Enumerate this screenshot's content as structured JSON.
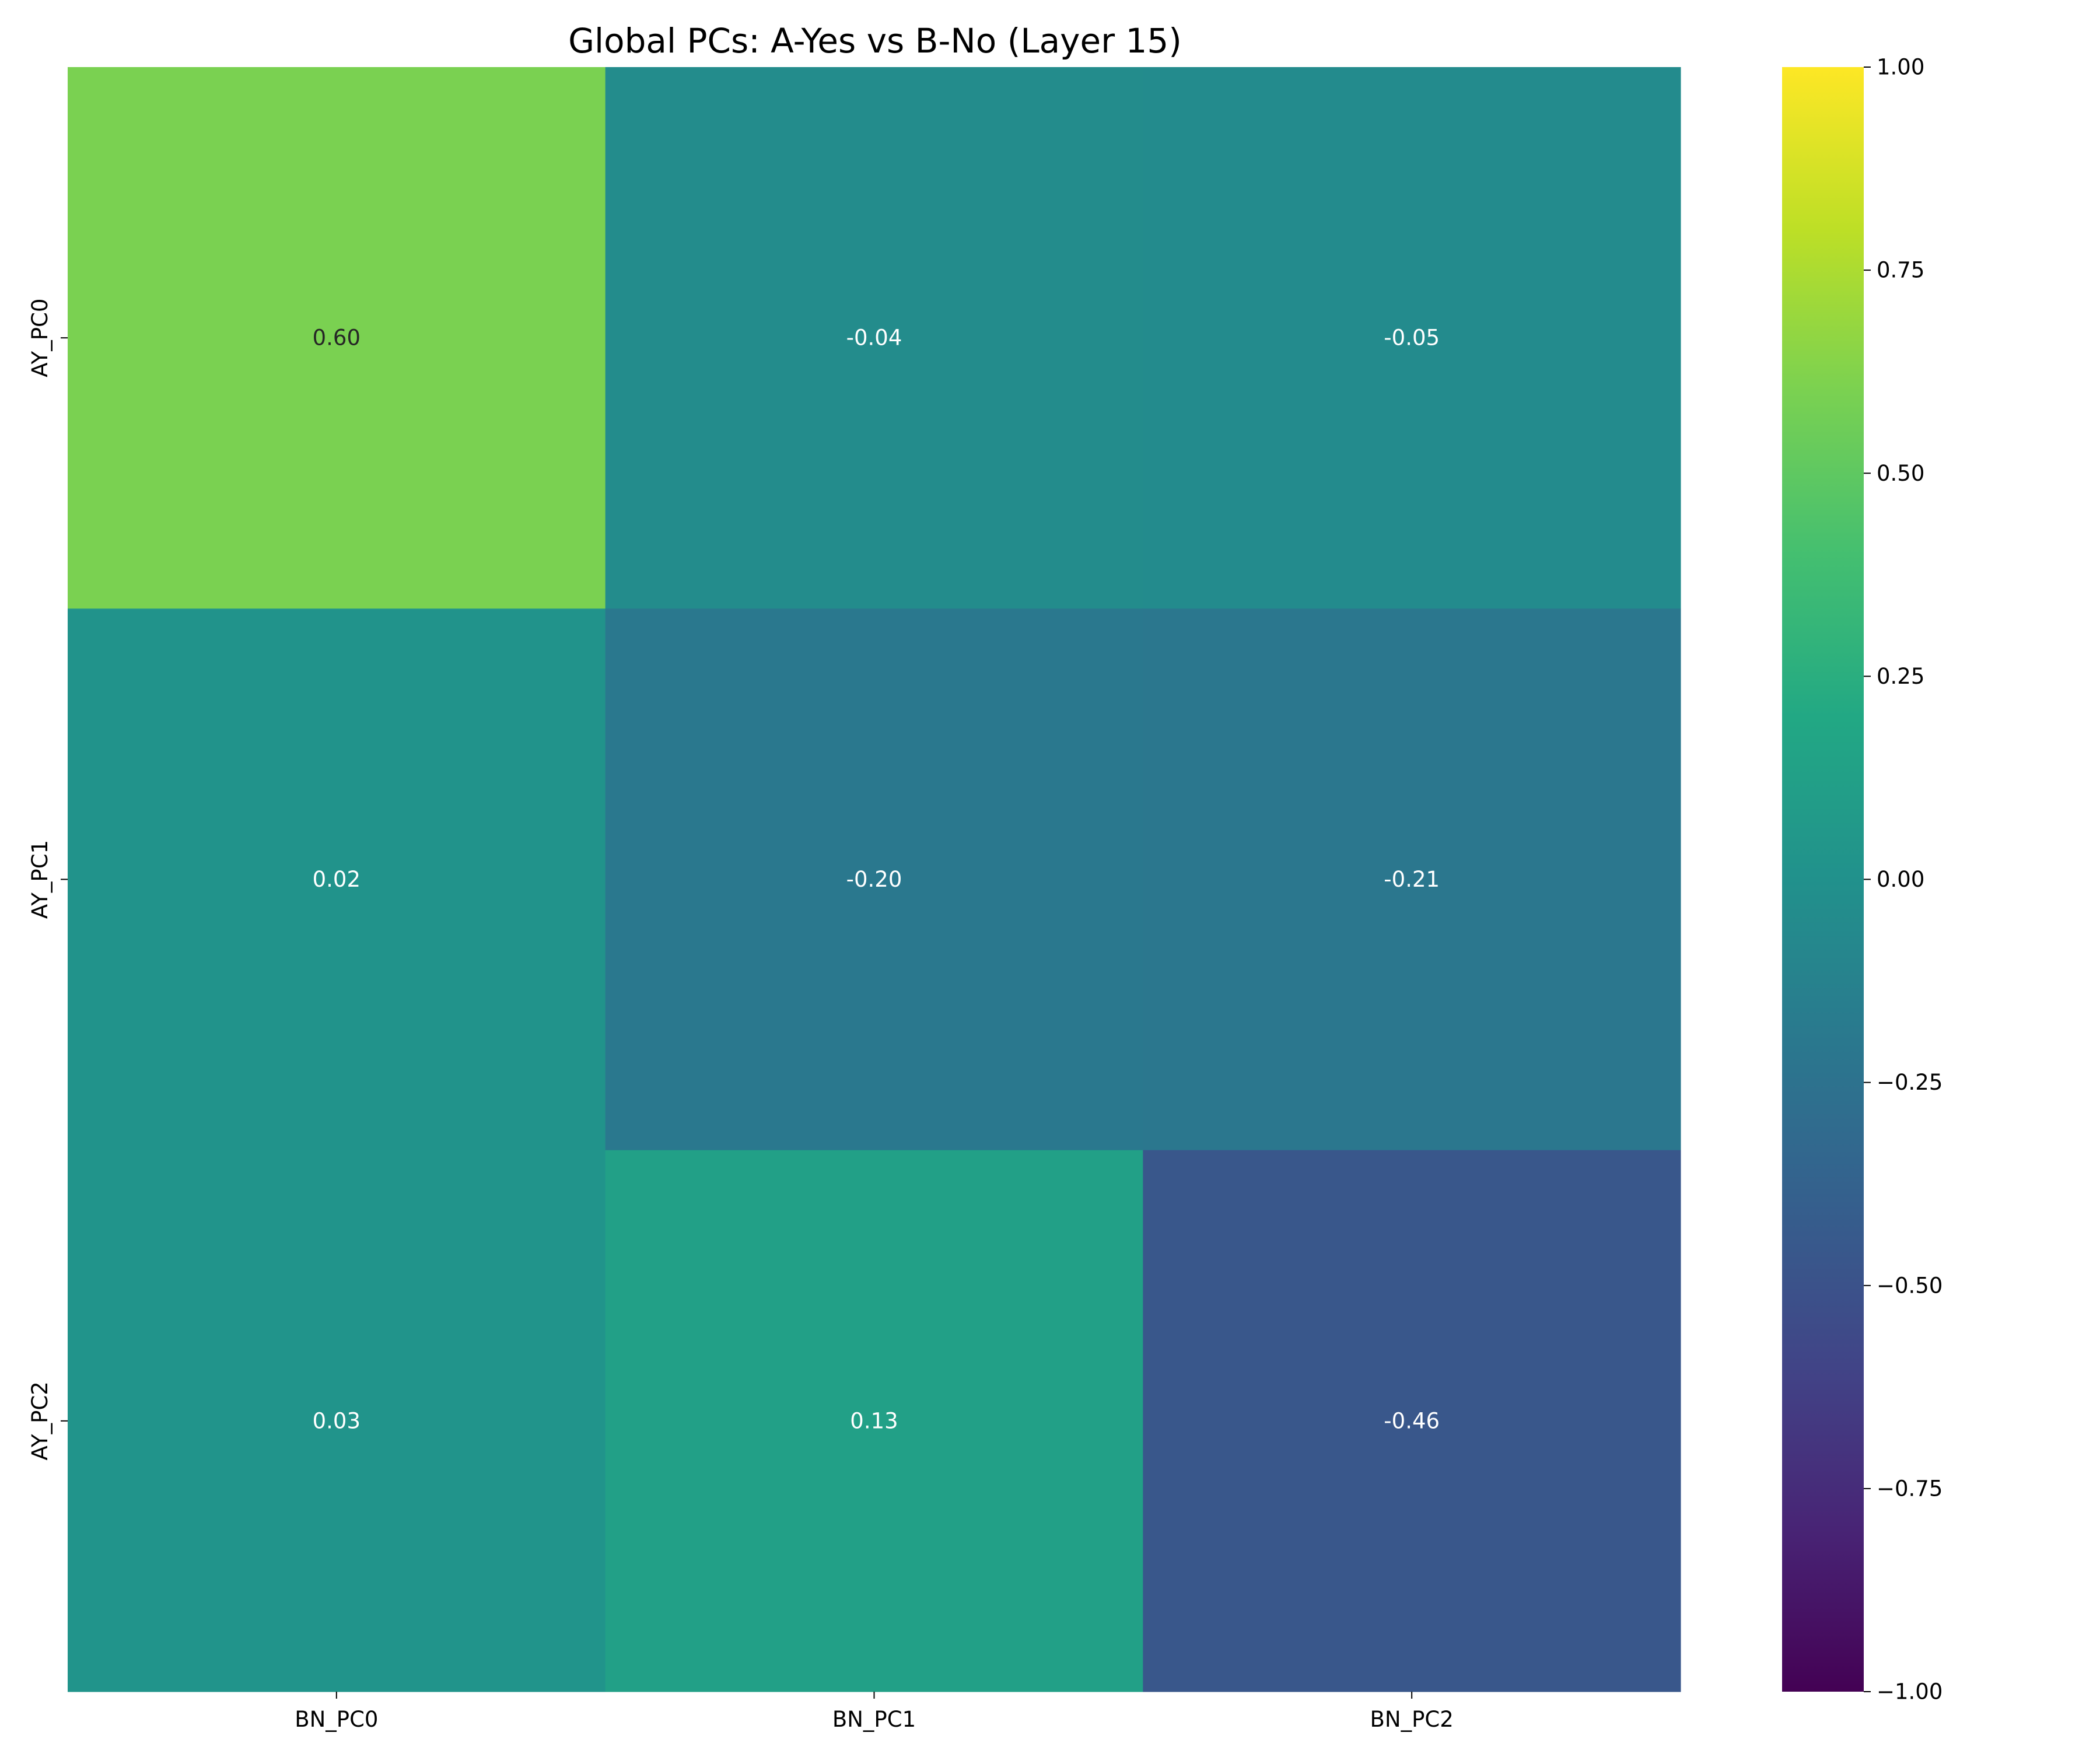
{
  "chart_data": {
    "type": "heatmap",
    "title": "Global PCs: A-Yes vs B-No (Layer 15)",
    "xlabel": "",
    "ylabel": "",
    "x_categories": [
      "BN_PC0",
      "BN_PC1",
      "BN_PC2"
    ],
    "y_categories": [
      "AY_PC0",
      "AY_PC1",
      "AY_PC2"
    ],
    "values": [
      [
        0.6,
        -0.04,
        -0.05
      ],
      [
        0.02,
        -0.2,
        -0.21
      ],
      [
        0.03,
        0.13,
        -0.46
      ]
    ],
    "value_labels": [
      [
        "0.60",
        "-0.04",
        "-0.05"
      ],
      [
        "0.02",
        "-0.20",
        "-0.21"
      ],
      [
        "0.03",
        "0.13",
        "-0.46"
      ]
    ],
    "colormap": "viridis",
    "vmin": -1.0,
    "vmax": 1.0,
    "colorbar_ticks": [
      1.0,
      0.75,
      0.5,
      0.25,
      0.0,
      -0.25,
      -0.5,
      -0.75,
      -1.0
    ],
    "colorbar_tick_labels": [
      "1.00",
      "0.75",
      "0.50",
      "0.25",
      "0.00",
      "−0.25",
      "−0.50",
      "−0.75",
      "−1.00"
    ],
    "grid": false,
    "legend": "colorbar-right"
  }
}
